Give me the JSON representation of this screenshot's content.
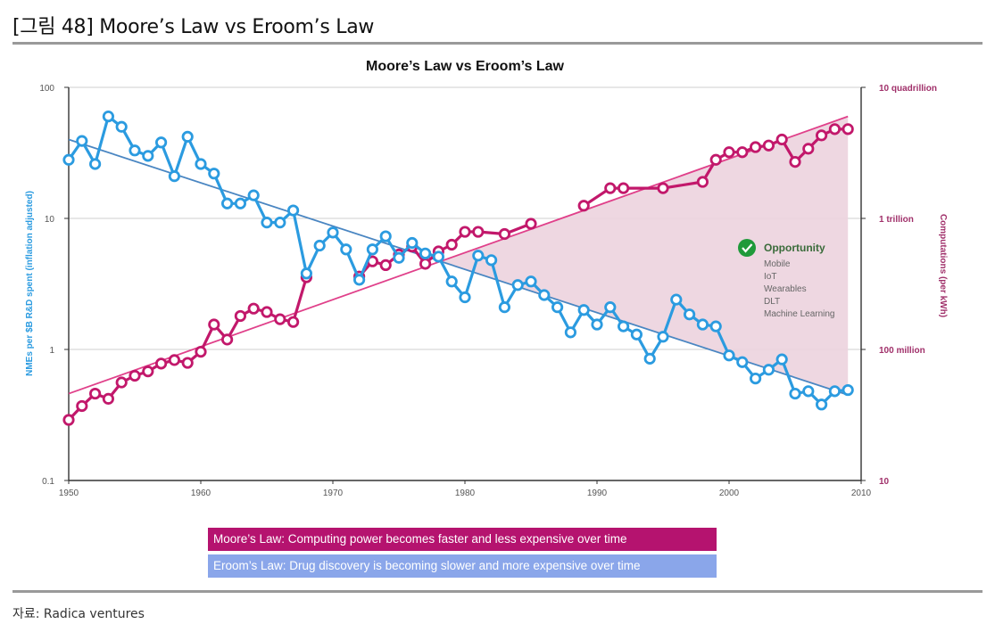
{
  "figure": {
    "title": "[그림 48] Moore’s Law vs Eroom’s Law",
    "source": "자료: Radica ventures"
  },
  "chart_data": {
    "type": "line",
    "title": "Moore’s Law vs Eroom’s Law",
    "xlabel": "",
    "ylabel": "NMEs per $B R&D spent (inflation adjusted)",
    "y2label": "Computations (per kWh)",
    "xlim": [
      1950,
      2010
    ],
    "ylim": [
      0.1,
      100
    ],
    "yscale": "log",
    "x_ticks": [
      "1950",
      "1960",
      "1970",
      "1980",
      "1990",
      "2000",
      "2010"
    ],
    "y_ticks": [
      "100",
      "10",
      "1",
      "0.1"
    ],
    "y2_ticks": [
      "10 quadrillion",
      "1 trillion",
      "100 million",
      "10"
    ],
    "grid": "horizontal",
    "colors": {
      "eroom": "#2b9be0",
      "moore": "#c2186b",
      "fill": "#ecd3de",
      "eroom_trend": "#4a86c2",
      "moore_trend": "#e0408a"
    },
    "series": [
      {
        "name": "Eroom's Law (NMEs per $B R&D)",
        "axis": "left",
        "x": [
          1950,
          1951,
          1952,
          1953,
          1954,
          1955,
          1956,
          1957,
          1958,
          1959,
          1960,
          1961,
          1962,
          1963,
          1964,
          1965,
          1966,
          1967,
          1968,
          1969,
          1970,
          1971,
          1972,
          1973,
          1974,
          1975,
          1976,
          1977,
          1978,
          1979,
          1980,
          1981,
          1982,
          1983,
          1984,
          1985,
          1986,
          1987,
          1988,
          1989,
          1990,
          1991,
          1992,
          1993,
          1994,
          1995,
          1996,
          1997,
          1998,
          1999,
          2000,
          2001,
          2002,
          2003,
          2004,
          2005,
          2006,
          2007,
          2008,
          2009
        ],
        "values": [
          28,
          39,
          26,
          60,
          50,
          33,
          30,
          38,
          21,
          42,
          26,
          22,
          13,
          13,
          15,
          9.3,
          9.3,
          11.5,
          3.8,
          6.2,
          7.8,
          5.8,
          3.4,
          5.8,
          7.3,
          5.0,
          6.5,
          5.4,
          5.1,
          3.3,
          2.5,
          5.2,
          4.8,
          2.1,
          3.1,
          3.3,
          2.6,
          2.1,
          1.35,
          2.0,
          1.55,
          2.1,
          1.5,
          1.3,
          0.85,
          1.25,
          2.4,
          1.85,
          1.55,
          1.5,
          0.9,
          0.8,
          0.6,
          0.7,
          0.84,
          0.46,
          0.48,
          0.38,
          0.48,
          0.49
        ],
        "trend": {
          "x": [
            1950,
            2009
          ],
          "values": [
            40,
            0.45
          ]
        }
      },
      {
        "name": "Moore's Law (Computations per kWh)",
        "axis": "left-scaled",
        "x": [
          1950,
          1951,
          1952,
          1953,
          1954,
          1955,
          1956,
          1957,
          1958,
          1959,
          1960,
          1961,
          1962,
          1963,
          1964,
          1965,
          1966,
          1967,
          1968,
          1972,
          1973,
          1974,
          1975,
          1976,
          1977,
          1978,
          1979,
          1980,
          1981,
          1983,
          1985,
          1989,
          1991,
          1992,
          1995,
          1998,
          1999,
          2000,
          2001,
          2002,
          2003,
          2004,
          2005,
          2006,
          2007,
          2008,
          2009
        ],
        "values": [
          0.29,
          0.37,
          0.46,
          0.42,
          0.56,
          0.63,
          0.68,
          0.78,
          0.83,
          0.79,
          0.96,
          1.55,
          1.19,
          1.8,
          2.05,
          1.93,
          1.7,
          1.62,
          3.55,
          3.6,
          4.7,
          4.4,
          5.3,
          6.1,
          4.5,
          5.6,
          6.3,
          7.9,
          7.9,
          7.6,
          9.1,
          12.5,
          17,
          17,
          17,
          19,
          28,
          32,
          32,
          35,
          36,
          40,
          27,
          34,
          43,
          48,
          48
        ],
        "trend": {
          "x": [
            1950,
            2009
          ],
          "values": [
            0.46,
            60
          ]
        }
      }
    ],
    "annotation": {
      "title": "Opportunity",
      "icon": "check-circle-icon",
      "items": [
        "Mobile",
        "IoT",
        "Wearables",
        "DLT",
        "Machine Learning"
      ]
    },
    "legend": [
      {
        "label": "Moore’s Law: Computing power becomes faster and less expensive over time",
        "color": "#b5136f"
      },
      {
        "label": "Eroom’s Law: Drug discovery is becoming slower and more expensive over time",
        "color": "#8aa6ea"
      }
    ],
    "legend_position": "bottom"
  }
}
